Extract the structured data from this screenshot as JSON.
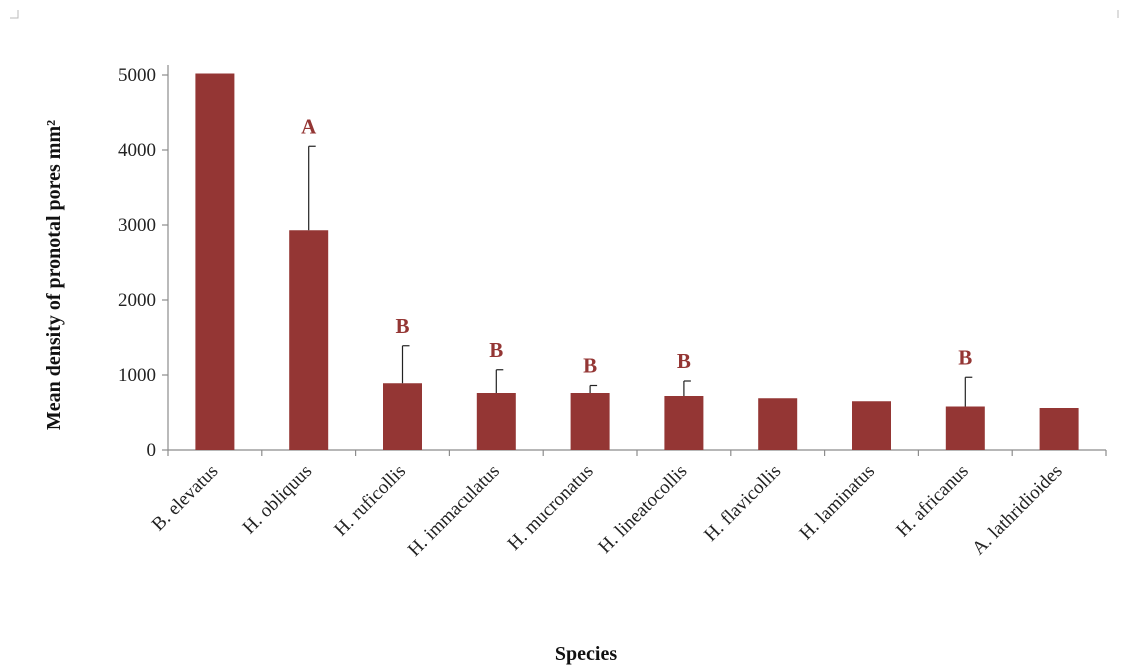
{
  "chart_data": {
    "type": "bar",
    "title": "",
    "xlabel": "Species",
    "ylabel": "Mean density of pronotal  pores mm²",
    "ylim": [
      0,
      5000
    ],
    "yticks": [
      0,
      1000,
      2000,
      3000,
      4000,
      5000
    ],
    "grid": false,
    "legend": "none",
    "bar_color": "#943634",
    "label_color": "#943634",
    "categories": [
      "B. elevatus",
      "H. obliquus",
      "H. ruficollis",
      "H. immaculatus",
      "H. mucronatus",
      "H. lineatocollis",
      "H. flavicollis",
      "H. laminatus",
      "H. africanus",
      "A. lathridioides"
    ],
    "values": [
      5020,
      2930,
      890,
      760,
      760,
      720,
      690,
      650,
      580,
      560
    ],
    "error_upper": [
      null,
      4050,
      1390,
      1070,
      860,
      920,
      null,
      null,
      970,
      null
    ],
    "annotations": [
      "",
      "A",
      "B",
      "B",
      "B",
      "B",
      "",
      "",
      "B",
      ""
    ]
  }
}
